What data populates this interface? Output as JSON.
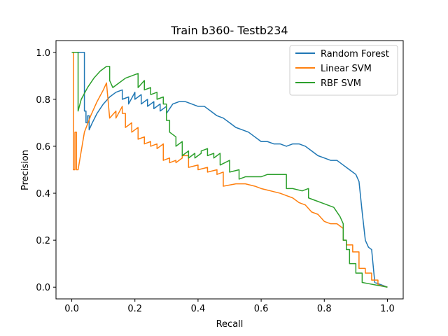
{
  "chart_data": {
    "type": "line",
    "title": "Train b360- Testb234",
    "xlabel": "Recall",
    "ylabel": "Precision",
    "xlim": [
      -0.05,
      1.05
    ],
    "ylim": [
      -0.05,
      1.05
    ],
    "xticks": [
      0.0,
      0.2,
      0.4,
      0.6,
      0.8,
      1.0
    ],
    "yticks": [
      0.0,
      0.2,
      0.4,
      0.6,
      0.8,
      1.0
    ],
    "xtick_labels": [
      "0.0",
      "0.2",
      "0.4",
      "0.6",
      "0.8",
      "1.0"
    ],
    "ytick_labels": [
      "0.0",
      "0.2",
      "0.4",
      "0.6",
      "0.8",
      "1.0"
    ],
    "grid": false,
    "legend_position": "top-right",
    "series": [
      {
        "name": "Random Forest",
        "color": "#1f77b4",
        "x": [
          0.0,
          0.04,
          0.04,
          0.045,
          0.045,
          0.05,
          0.05,
          0.055,
          0.055,
          0.065,
          0.08,
          0.1,
          0.12,
          0.14,
          0.16,
          0.16,
          0.18,
          0.18,
          0.2,
          0.2,
          0.22,
          0.22,
          0.24,
          0.24,
          0.26,
          0.26,
          0.28,
          0.28,
          0.3,
          0.3,
          0.32,
          0.34,
          0.36,
          0.38,
          0.4,
          0.42,
          0.44,
          0.46,
          0.48,
          0.5,
          0.52,
          0.54,
          0.56,
          0.58,
          0.6,
          0.62,
          0.64,
          0.66,
          0.68,
          0.7,
          0.72,
          0.74,
          0.76,
          0.78,
          0.8,
          0.82,
          0.84,
          0.86,
          0.88,
          0.9,
          0.91,
          0.91,
          0.92,
          0.92,
          0.93,
          0.93,
          0.94,
          0.94,
          0.95,
          0.95,
          0.96,
          0.96,
          0.98,
          1.0
        ],
        "y": [
          1.0,
          1.0,
          0.75,
          0.75,
          0.7,
          0.7,
          0.73,
          0.73,
          0.67,
          0.7,
          0.74,
          0.78,
          0.81,
          0.83,
          0.84,
          0.8,
          0.81,
          0.78,
          0.83,
          0.8,
          0.82,
          0.78,
          0.8,
          0.77,
          0.79,
          0.76,
          0.78,
          0.75,
          0.77,
          0.74,
          0.78,
          0.79,
          0.79,
          0.78,
          0.77,
          0.77,
          0.75,
          0.73,
          0.72,
          0.7,
          0.68,
          0.67,
          0.66,
          0.64,
          0.62,
          0.62,
          0.61,
          0.61,
          0.6,
          0.61,
          0.61,
          0.6,
          0.58,
          0.56,
          0.55,
          0.54,
          0.54,
          0.52,
          0.5,
          0.48,
          0.45,
          0.45,
          0.32,
          0.32,
          0.2,
          0.2,
          0.17,
          0.17,
          0.16,
          0.16,
          0.02,
          0.02,
          0.01,
          0.0
        ]
      },
      {
        "name": "Linear SVM",
        "color": "#ff7f0e",
        "x": [
          0.0,
          0.005,
          0.005,
          0.01,
          0.01,
          0.015,
          0.015,
          0.02,
          0.04,
          0.06,
          0.08,
          0.1,
          0.11,
          0.11,
          0.12,
          0.12,
          0.14,
          0.14,
          0.16,
          0.16,
          0.17,
          0.17,
          0.19,
          0.19,
          0.21,
          0.21,
          0.23,
          0.23,
          0.25,
          0.25,
          0.27,
          0.27,
          0.29,
          0.29,
          0.31,
          0.31,
          0.33,
          0.33,
          0.35,
          0.35,
          0.37,
          0.37,
          0.4,
          0.4,
          0.43,
          0.43,
          0.46,
          0.46,
          0.48,
          0.48,
          0.52,
          0.55,
          0.58,
          0.6,
          0.63,
          0.66,
          0.68,
          0.7,
          0.72,
          0.74,
          0.76,
          0.78,
          0.8,
          0.82,
          0.84,
          0.86,
          0.86,
          0.87,
          0.87,
          0.89,
          0.89,
          0.91,
          0.91,
          0.93,
          0.93,
          0.95,
          0.95,
          0.97,
          0.97,
          1.0
        ],
        "y": [
          1.0,
          1.0,
          0.5,
          0.5,
          0.66,
          0.66,
          0.5,
          0.5,
          0.66,
          0.73,
          0.79,
          0.84,
          0.87,
          0.87,
          0.72,
          0.72,
          0.75,
          0.72,
          0.77,
          0.74,
          0.74,
          0.68,
          0.7,
          0.66,
          0.68,
          0.63,
          0.64,
          0.61,
          0.62,
          0.6,
          0.61,
          0.59,
          0.61,
          0.54,
          0.55,
          0.53,
          0.54,
          0.53,
          0.55,
          0.56,
          0.56,
          0.51,
          0.52,
          0.5,
          0.51,
          0.49,
          0.5,
          0.48,
          0.49,
          0.43,
          0.44,
          0.44,
          0.43,
          0.42,
          0.41,
          0.4,
          0.39,
          0.38,
          0.36,
          0.35,
          0.32,
          0.31,
          0.28,
          0.27,
          0.27,
          0.25,
          0.2,
          0.2,
          0.18,
          0.18,
          0.15,
          0.15,
          0.08,
          0.08,
          0.06,
          0.06,
          0.03,
          0.03,
          0.01,
          0.0
        ]
      },
      {
        "name": "RBF SVM",
        "color": "#2ca02c",
        "x": [
          0.0,
          0.02,
          0.02,
          0.03,
          0.05,
          0.07,
          0.09,
          0.11,
          0.12,
          0.12,
          0.13,
          0.15,
          0.17,
          0.19,
          0.21,
          0.21,
          0.23,
          0.23,
          0.25,
          0.25,
          0.27,
          0.27,
          0.29,
          0.29,
          0.3,
          0.3,
          0.31,
          0.31,
          0.33,
          0.33,
          0.35,
          0.35,
          0.37,
          0.37,
          0.39,
          0.39,
          0.41,
          0.41,
          0.43,
          0.43,
          0.45,
          0.45,
          0.47,
          0.47,
          0.5,
          0.5,
          0.53,
          0.53,
          0.55,
          0.58,
          0.6,
          0.62,
          0.64,
          0.68,
          0.68,
          0.7,
          0.73,
          0.75,
          0.75,
          0.77,
          0.79,
          0.81,
          0.83,
          0.85,
          0.86,
          0.86,
          0.87,
          0.87,
          0.88,
          0.88,
          0.9,
          0.9,
          0.92,
          0.92,
          0.94,
          0.96,
          0.98,
          1.0
        ],
        "y": [
          1.0,
          1.0,
          0.75,
          0.8,
          0.85,
          0.89,
          0.92,
          0.94,
          0.94,
          0.88,
          0.85,
          0.87,
          0.89,
          0.9,
          0.91,
          0.85,
          0.88,
          0.84,
          0.85,
          0.82,
          0.83,
          0.8,
          0.81,
          0.78,
          0.78,
          0.71,
          0.71,
          0.66,
          0.64,
          0.6,
          0.62,
          0.56,
          0.58,
          0.55,
          0.57,
          0.55,
          0.57,
          0.58,
          0.59,
          0.56,
          0.57,
          0.55,
          0.57,
          0.52,
          0.54,
          0.49,
          0.5,
          0.46,
          0.47,
          0.47,
          0.47,
          0.48,
          0.48,
          0.48,
          0.42,
          0.42,
          0.41,
          0.42,
          0.38,
          0.37,
          0.36,
          0.35,
          0.34,
          0.3,
          0.27,
          0.2,
          0.2,
          0.16,
          0.16,
          0.1,
          0.1,
          0.06,
          0.06,
          0.02,
          0.015,
          0.01,
          0.005,
          0.0
        ]
      }
    ]
  }
}
